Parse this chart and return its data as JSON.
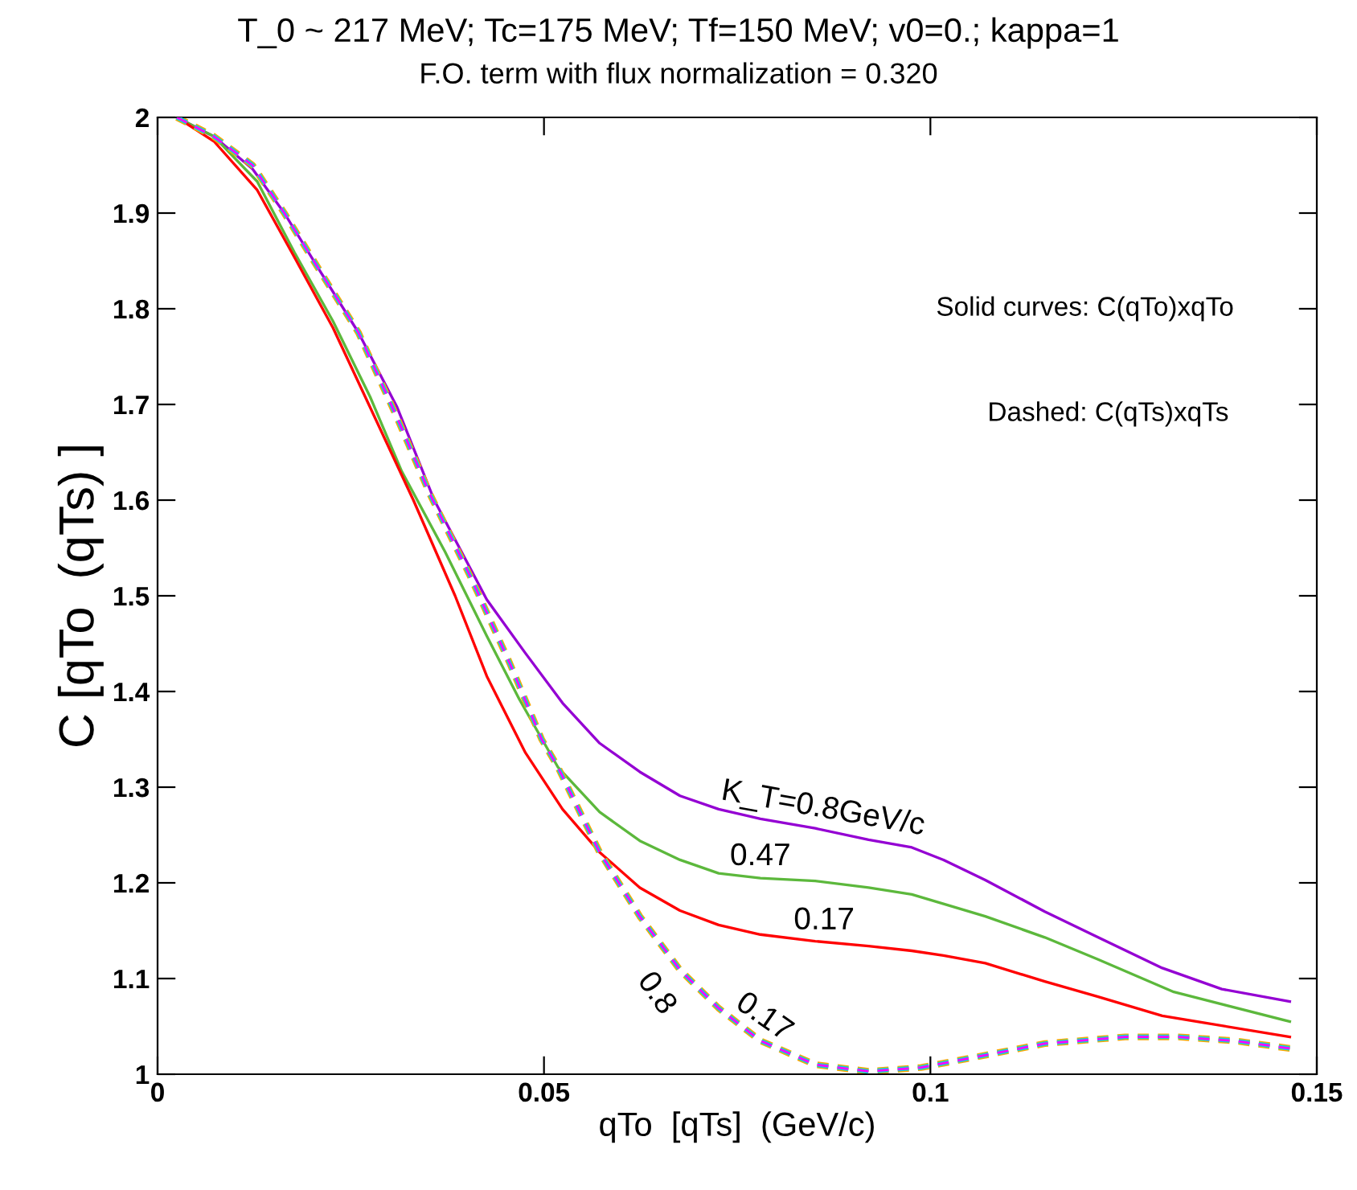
{
  "chart_data": {
    "type": "line",
    "title": "T_0 ~ 217 MeV; Tc=175 MeV; Tf=150 MeV; v0=0.; kappa=1",
    "subtitle": "F.O. term with flux normalization = 0.320",
    "xlabel": "qTo  [qTs]  (GeV/c)",
    "ylabel": "C [qTo  (qTs) ]",
    "xlim": [
      0,
      0.15
    ],
    "ylim": [
      1,
      2
    ],
    "xticks": [
      0,
      0.05,
      0.1,
      0.15
    ],
    "yticks": [
      1,
      1.1,
      1.2,
      1.3,
      1.4,
      1.5,
      1.6,
      1.7,
      1.8,
      1.9,
      2
    ],
    "grid": false,
    "legend": false,
    "marker": "none",
    "series": [
      {
        "color": "#9400d3",
        "line_style": "solid",
        "x": [
          0.0025,
          0.0073,
          0.0123,
          0.0164,
          0.0212,
          0.026,
          0.031,
          0.0358,
          0.0426,
          0.0476,
          0.0524,
          0.0572,
          0.0624,
          0.0676,
          0.0726,
          0.078,
          0.0851,
          0.092,
          0.0976,
          0.1017,
          0.1071,
          0.1148,
          0.1217,
          0.13,
          0.1377,
          0.1465
        ],
        "values": [
          2.0,
          1.98,
          1.946,
          1.9,
          1.837,
          1.775,
          1.697,
          1.6,
          1.496,
          1.44,
          1.388,
          1.346,
          1.316,
          1.291,
          1.277,
          1.267,
          1.257,
          1.245,
          1.237,
          1.224,
          1.203,
          1.17,
          1.143,
          1.111,
          1.089,
          1.076
        ]
      },
      {
        "color": "#5cb83c",
        "line_style": "solid",
        "x": [
          0.0025,
          0.0073,
          0.0129,
          0.0177,
          0.0227,
          0.0275,
          0.0316,
          0.0372,
          0.0426,
          0.0468,
          0.0518,
          0.0572,
          0.0624,
          0.0676,
          0.0726,
          0.078,
          0.0851,
          0.092,
          0.0976,
          0.1017,
          0.1071,
          0.1148,
          0.1217,
          0.1315,
          0.1465
        ],
        "values": [
          2.0,
          1.98,
          1.933,
          1.859,
          1.787,
          1.708,
          1.63,
          1.546,
          1.458,
          1.392,
          1.321,
          1.274,
          1.244,
          1.224,
          1.21,
          1.205,
          1.202,
          1.195,
          1.188,
          1.178,
          1.165,
          1.143,
          1.12,
          1.086,
          1.055
        ]
      },
      {
        "color": "#ff0000",
        "line_style": "solid",
        "x": [
          0.0025,
          0.0073,
          0.0129,
          0.0177,
          0.0227,
          0.0275,
          0.0331,
          0.0385,
          0.0426,
          0.0476,
          0.0524,
          0.0572,
          0.0624,
          0.0676,
          0.0726,
          0.078,
          0.0851,
          0.092,
          0.0976,
          0.1017,
          0.1071,
          0.1148,
          0.1217,
          0.13,
          0.1465
        ],
        "values": [
          2.0,
          1.975,
          1.924,
          1.854,
          1.78,
          1.697,
          1.6,
          1.5,
          1.416,
          1.336,
          1.277,
          1.232,
          1.195,
          1.171,
          1.156,
          1.146,
          1.139,
          1.134,
          1.129,
          1.124,
          1.116,
          1.097,
          1.081,
          1.061,
          1.039
        ]
      },
      {
        "color": "#ffa500",
        "line_style": "dashed",
        "x": [
          0.0025,
          0.0073,
          0.0123,
          0.0164,
          0.0212,
          0.026,
          0.031,
          0.0352,
          0.0406,
          0.0456,
          0.0497,
          0.0518,
          0.0572,
          0.0624,
          0.0676,
          0.0726,
          0.078,
          0.0851,
          0.092,
          0.0988,
          0.1059,
          0.1148,
          0.1252,
          0.1321,
          0.1392,
          0.1465
        ],
        "values": [
          2.0,
          1.98,
          1.95,
          1.9,
          1.837,
          1.775,
          1.686,
          1.607,
          1.518,
          1.429,
          1.35,
          1.321,
          1.232,
          1.165,
          1.109,
          1.069,
          1.035,
          1.01,
          1.003,
          1.007,
          1.018,
          1.032,
          1.039,
          1.039,
          1.035,
          1.027
        ]
      },
      {
        "color": "#00dcdc",
        "line_style": "dashed",
        "x": [
          0.0025,
          0.0073,
          0.0123,
          0.0164,
          0.0212,
          0.026,
          0.031,
          0.0352,
          0.0406,
          0.0456,
          0.0497,
          0.0518,
          0.0572,
          0.0624,
          0.0676,
          0.0726,
          0.078,
          0.0851,
          0.092,
          0.0988,
          0.1059,
          0.1148,
          0.1252,
          0.1321,
          0.1392,
          0.1465
        ],
        "values": [
          2.0,
          1.98,
          1.95,
          1.9,
          1.837,
          1.775,
          1.686,
          1.607,
          1.518,
          1.429,
          1.35,
          1.321,
          1.232,
          1.165,
          1.109,
          1.069,
          1.035,
          1.01,
          1.003,
          1.007,
          1.018,
          1.032,
          1.039,
          1.039,
          1.035,
          1.027
        ]
      },
      {
        "color": "#ff00ff",
        "line_style": "dashed",
        "x": [
          0.0025,
          0.0073,
          0.0123,
          0.0164,
          0.0212,
          0.026,
          0.031,
          0.0352,
          0.0406,
          0.0456,
          0.0497,
          0.0518,
          0.0572,
          0.0624,
          0.0676,
          0.0726,
          0.078,
          0.0851,
          0.092,
          0.0988,
          0.1059,
          0.1148,
          0.1252,
          0.1321,
          0.1392,
          0.1465
        ],
        "values": [
          2.0,
          1.98,
          1.95,
          1.9,
          1.837,
          1.775,
          1.686,
          1.607,
          1.518,
          1.429,
          1.35,
          1.321,
          1.232,
          1.165,
          1.109,
          1.069,
          1.035,
          1.01,
          1.003,
          1.007,
          1.018,
          1.032,
          1.039,
          1.039,
          1.035,
          1.027
        ]
      }
    ],
    "annotations": [
      "Solid curves: C(qTo)xqTo",
      "Dashed: C(qTs)xqTs",
      "K_T=0.8GeV/c",
      "0.47",
      "0.17",
      "0.8",
      "0.17"
    ]
  }
}
